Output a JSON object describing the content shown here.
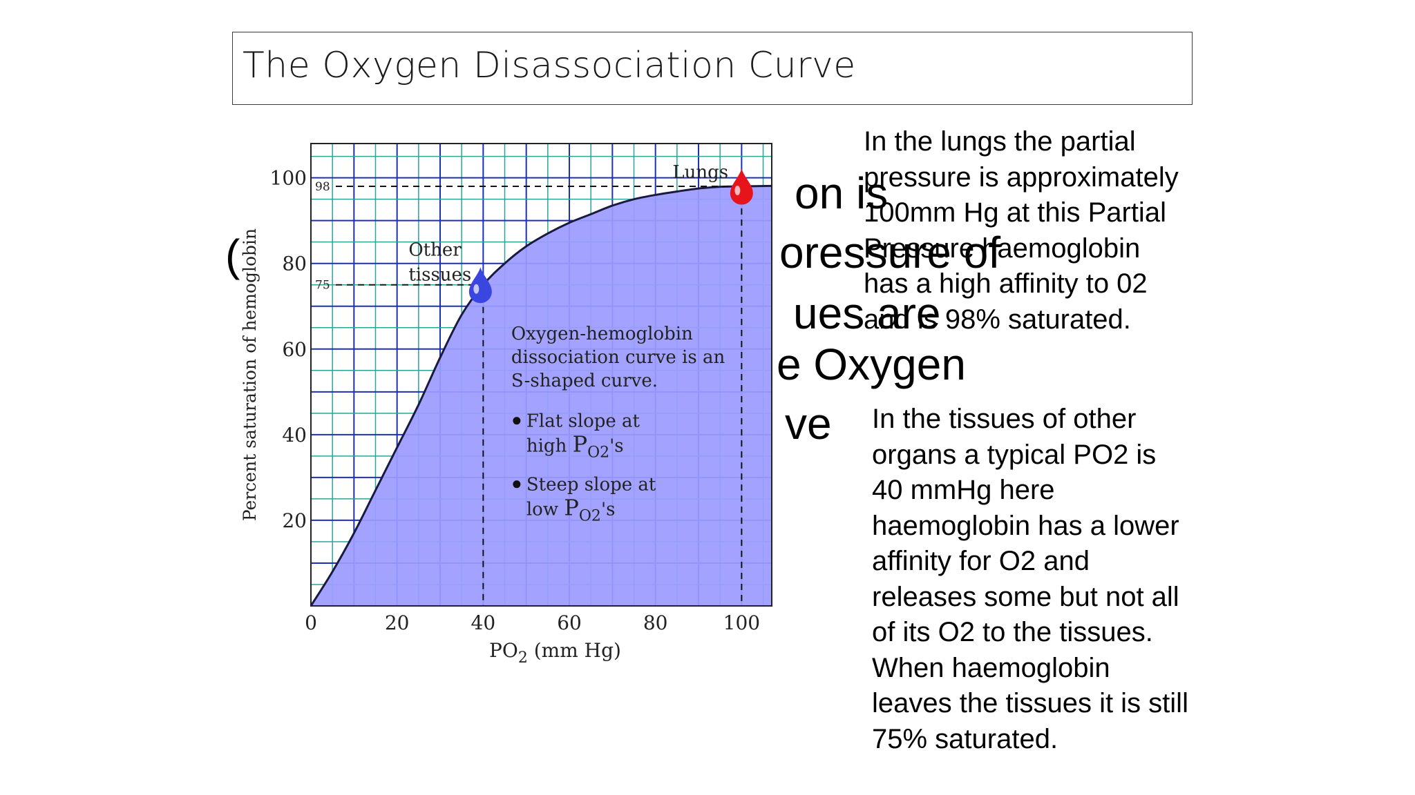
{
  "title": "The Oxygen Disassociation Curve",
  "background_fragments": [
    "on is",
    "(",
    "oressure of",
    "ues are",
    "e Oxygen",
    "ve"
  ],
  "side_text": {
    "lungs": "In the lungs the partial pressure is approximately 100mm Hg at this Partial Pressure haemoglobin has a high affinity to 02 and is 98% saturated.",
    "tissues": "In the tissues of other organs a typical PO2 is 40 mmHg here haemoglobin has a lower affinity for O2 and releases some but not all of its O2 to the tissues.  When haemoglobin leaves the tissues it is still 75% saturated."
  },
  "chart_data": {
    "type": "area",
    "xlabel": "PO2 (mm Hg)",
    "ylabel": "Percent saturation of hemoglobin",
    "xlim": [
      0,
      107
    ],
    "ylim": [
      0,
      108
    ],
    "xticks": [
      0,
      20,
      40,
      60,
      80,
      100
    ],
    "yticks": [
      20,
      40,
      60,
      80,
      100
    ],
    "grid": true,
    "x": [
      0,
      5,
      10,
      15,
      20,
      25,
      30,
      35,
      40,
      45,
      50,
      55,
      60,
      65,
      70,
      75,
      80,
      85,
      90,
      95,
      100,
      107
    ],
    "y": [
      0,
      8,
      17,
      27,
      37,
      47,
      58,
      68,
      75,
      80,
      84,
      87,
      89.5,
      91.5,
      93.5,
      95,
      96,
      96.8,
      97.5,
      97.9,
      98,
      98.1
    ],
    "ref_lines": [
      {
        "label": "98",
        "x": 100,
        "y": 98
      },
      {
        "label": "75",
        "x": 40,
        "y": 75
      }
    ],
    "markers": [
      {
        "label": "Lungs",
        "x": 100,
        "y": 98,
        "color": "#e8141c"
      },
      {
        "label_lines": [
          "Other",
          "tissues"
        ],
        "x": 40,
        "y": 75,
        "color": "#3a46e0"
      }
    ],
    "annotation": {
      "lines": [
        "Oxygen-hemoglobin",
        "dissociation curve is an",
        "S-shaped curve."
      ],
      "bullets": [
        {
          "line1": "Flat slope at",
          "line2_prefix": "high",
          "sub_main": "P",
          "sub": "O2",
          "suffix": "'s"
        },
        {
          "line1": "Steep slope at",
          "line2_prefix": "low",
          "sub_main": "P",
          "sub": "O2",
          "suffix": "'s"
        }
      ]
    },
    "colors": {
      "fill": "#9c9cff",
      "grid_light": "#2aa39a",
      "grid_dark": "#1c2fb8",
      "curve": "#1a1a40"
    }
  }
}
